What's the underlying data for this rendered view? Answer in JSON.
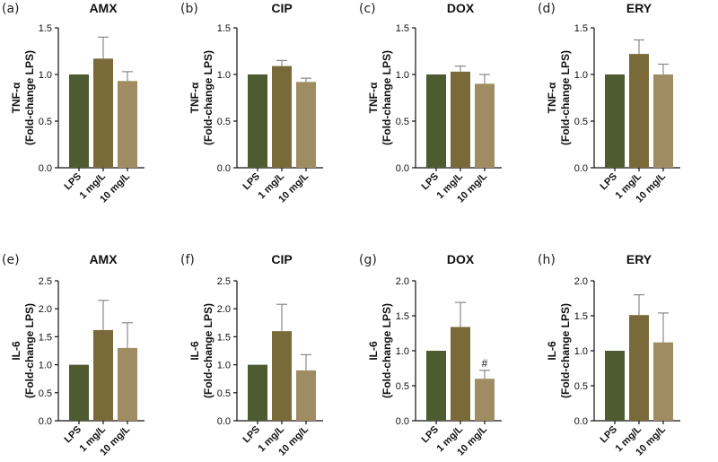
{
  "colors": {
    "lps": "#4e5a30",
    "low": "#7a6a3a",
    "high": "#a08c62"
  },
  "chart_data": [
    {
      "type": "bar",
      "panel": "(a)",
      "title": "AMX",
      "ylabel": [
        "TNF-α",
        "(Fold-change LPS)"
      ],
      "categories": [
        "LPS",
        "1 mg/L",
        "10 mg/L"
      ],
      "values": [
        1.0,
        1.17,
        0.93
      ],
      "errors": [
        0,
        0.23,
        0.1
      ],
      "ylim": [
        0,
        1.5
      ],
      "yticks": [
        "0.0",
        "0.5",
        "1.0",
        "1.5"
      ],
      "annotations": [
        "",
        "",
        ""
      ]
    },
    {
      "type": "bar",
      "panel": "(b)",
      "title": "CIP",
      "ylabel": [
        "TNF-α",
        "(Fold-change LPS)"
      ],
      "categories": [
        "LPS",
        "1 mg/L",
        "10 mg/L"
      ],
      "values": [
        1.0,
        1.09,
        0.92
      ],
      "errors": [
        0,
        0.06,
        0.04
      ],
      "ylim": [
        0,
        1.5
      ],
      "yticks": [
        "0.0",
        "0.5",
        "1.0",
        "1.5"
      ],
      "annotations": [
        "",
        "",
        ""
      ]
    },
    {
      "type": "bar",
      "panel": "(c)",
      "title": "DOX",
      "ylabel": [
        "TNF-α",
        "(Fold-change LPS)"
      ],
      "categories": [
        "LPS",
        "1 mg/L",
        "10 mg/L"
      ],
      "values": [
        1.0,
        1.03,
        0.9
      ],
      "errors": [
        0,
        0.06,
        0.1
      ],
      "ylim": [
        0,
        1.5
      ],
      "yticks": [
        "0.0",
        "0.5",
        "1.0",
        "1.5"
      ],
      "annotations": [
        "",
        "",
        ""
      ]
    },
    {
      "type": "bar",
      "panel": "(d)",
      "title": "ERY",
      "ylabel": [
        "TNF-α",
        "(Fold-change LPS)"
      ],
      "categories": [
        "LPS",
        "1 mg/L",
        "10 mg/L"
      ],
      "values": [
        1.0,
        1.22,
        1.0
      ],
      "errors": [
        0,
        0.15,
        0.11
      ],
      "ylim": [
        0,
        1.5
      ],
      "yticks": [
        "0.0",
        "0.5",
        "1.0",
        "1.5"
      ],
      "annotations": [
        "",
        "",
        ""
      ]
    },
    {
      "type": "bar",
      "panel": "(e)",
      "title": "AMX",
      "ylabel": [
        "IL-6",
        "(Fold-change LPS)"
      ],
      "categories": [
        "LPS",
        "1 mg/L",
        "10 mg/L"
      ],
      "values": [
        1.0,
        1.62,
        1.3
      ],
      "errors": [
        0,
        0.53,
        0.45
      ],
      "ylim": [
        0,
        2.5
      ],
      "yticks": [
        "0.0",
        "0.5",
        "1.0",
        "1.5",
        "2.0",
        "2.5"
      ],
      "annotations": [
        "",
        "",
        ""
      ]
    },
    {
      "type": "bar",
      "panel": "(f)",
      "title": "CIP",
      "ylabel": [
        "IL-6",
        "(Fold-change LPS)"
      ],
      "categories": [
        "LPS",
        "1 mg/L",
        "10 mg/L"
      ],
      "values": [
        1.0,
        1.6,
        0.9
      ],
      "errors": [
        0,
        0.48,
        0.28
      ],
      "ylim": [
        0,
        2.5
      ],
      "yticks": [
        "0.0",
        "0.5",
        "1.0",
        "1.5",
        "2.0",
        "2.5"
      ],
      "annotations": [
        "",
        "",
        ""
      ]
    },
    {
      "type": "bar",
      "panel": "(g)",
      "title": "DOX",
      "ylabel": [
        "IL-6",
        "(Fold-change LPS)"
      ],
      "categories": [
        "LPS",
        "1 mg/L",
        "10 mg/L"
      ],
      "values": [
        1.0,
        1.34,
        0.6
      ],
      "errors": [
        0,
        0.35,
        0.12
      ],
      "ylim": [
        0,
        2.0
      ],
      "yticks": [
        "0.0",
        "0.5",
        "1.0",
        "1.5",
        "2.0"
      ],
      "annotations": [
        "",
        "",
        "#"
      ]
    },
    {
      "type": "bar",
      "panel": "(h)",
      "title": "ERY",
      "ylabel": [
        "IL-6",
        "(Fold-change LPS)"
      ],
      "categories": [
        "LPS",
        "1 mg/L",
        "10 mg/L"
      ],
      "values": [
        1.0,
        1.51,
        1.12
      ],
      "errors": [
        0,
        0.29,
        0.42
      ],
      "ylim": [
        0,
        2.0
      ],
      "yticks": [
        "0.0",
        "0.5",
        "1.0",
        "1.5",
        "2.0"
      ],
      "annotations": [
        "",
        "",
        ""
      ]
    }
  ]
}
